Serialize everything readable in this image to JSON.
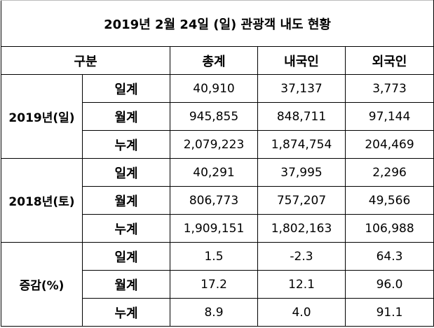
{
  "title": "2019년 2월 24일 (일) 관광객 내도 현황",
  "headers": {
    "category": "구분",
    "total": "총계",
    "domestic": "내국인",
    "foreign": "외국인"
  },
  "groups": [
    {
      "label": "2019년(일)",
      "rows": [
        {
          "sub": "일계",
          "total": "40,910",
          "domestic": "37,137",
          "foreign": "3,773"
        },
        {
          "sub": "월계",
          "total": "945,855",
          "domestic": "848,711",
          "foreign": "97,144"
        },
        {
          "sub": "누계",
          "total": "2,079,223",
          "domestic": "1,874,754",
          "foreign": "204,469"
        }
      ]
    },
    {
      "label": "2018년(토)",
      "rows": [
        {
          "sub": "일계",
          "total": "40,291",
          "domestic": "37,995",
          "foreign": "2,296"
        },
        {
          "sub": "월계",
          "total": "806,773",
          "domestic": "757,207",
          "foreign": "49,566"
        },
        {
          "sub": "누계",
          "total": "1,909,151",
          "domestic": "1,802,163",
          "foreign": "106,988"
        }
      ]
    },
    {
      "label": "증감(%)",
      "rows": [
        {
          "sub": "일계",
          "total": "1.5",
          "domestic": "-2.3",
          "foreign": "64.3"
        },
        {
          "sub": "월계",
          "total": "17.2",
          "domestic": "12.1",
          "foreign": "96.0"
        },
        {
          "sub": "누계",
          "total": "8.9",
          "domestic": "4.0",
          "foreign": "91.1"
        }
      ]
    }
  ]
}
